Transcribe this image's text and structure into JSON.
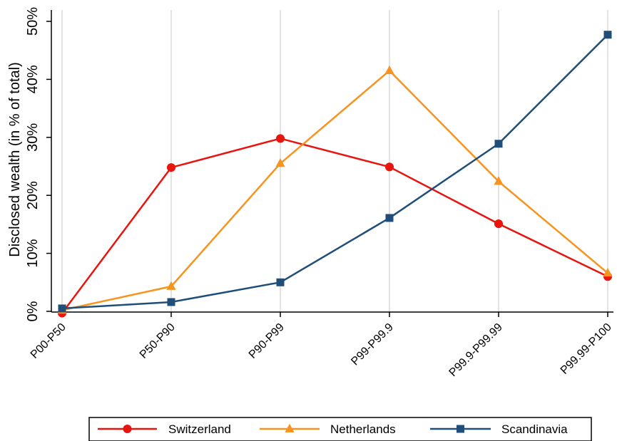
{
  "chart_data": {
    "type": "line",
    "categories": [
      "P00-P50",
      "P50-P90",
      "P90-P99",
      "P99-P99.9",
      "P99.9-P99.99",
      "P99.99-P100"
    ],
    "ylabel": "Disclosed wealth (in % of total)",
    "xlabel": "",
    "ylim": [
      0,
      50
    ],
    "yticks": [
      0,
      10,
      20,
      30,
      40,
      50
    ],
    "ytick_labels": [
      "0%",
      "10%",
      "20%",
      "30%",
      "40%",
      "50%"
    ],
    "grid": "vertical",
    "legend_position": "bottom",
    "series": [
      {
        "name": "Switzerland",
        "color": "#e8150f",
        "marker": "circle",
        "values": [
          -0.3,
          24.8,
          29.8,
          24.9,
          15.1,
          6.0
        ]
      },
      {
        "name": "Netherlands",
        "color": "#f7931e",
        "marker": "triangle",
        "values": [
          0.2,
          4.3,
          25.5,
          41.5,
          22.4,
          6.6
        ]
      },
      {
        "name": "Scandinavia",
        "color": "#1f4e79",
        "marker": "square",
        "values": [
          0.5,
          1.6,
          5.0,
          16.1,
          28.9,
          47.7
        ]
      }
    ]
  }
}
